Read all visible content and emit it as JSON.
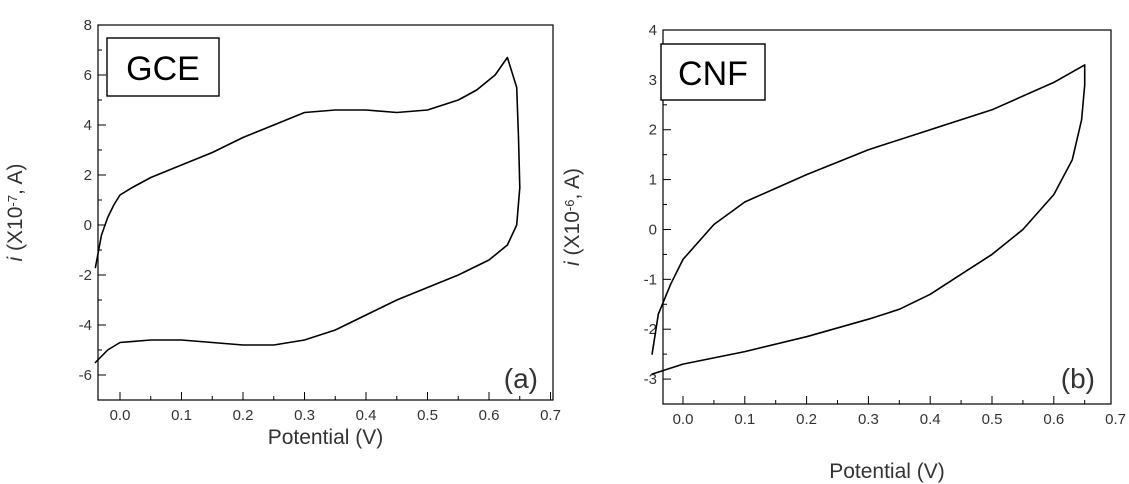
{
  "chart_data": [
    {
      "type": "line",
      "panel_tag": "(a)",
      "inset_label": "GCE",
      "xlabel": "Potential (V)",
      "ylabel": {
        "italic": "i",
        "prefix": " (X10",
        "sup": "-7",
        "suffix": ", A)"
      },
      "xlim": [
        -0.04,
        0.7
      ],
      "ylim": [
        -7,
        8
      ],
      "xticks": [
        "0.0",
        "0.1",
        "0.2",
        "0.3",
        "0.4",
        "0.5",
        "0.6",
        "0.7"
      ],
      "yticks": [
        "-6",
        "-4",
        "-2",
        "0",
        "2",
        "4",
        "6",
        "8"
      ],
      "grid": false,
      "series": [
        {
          "x": [
            -0.04,
            -0.03,
            -0.02,
            -0.01,
            0.0,
            0.02,
            0.05,
            0.1,
            0.15,
            0.2,
            0.25,
            0.3,
            0.35,
            0.4,
            0.45,
            0.5,
            0.55,
            0.58,
            0.61,
            0.63,
            0.645,
            0.648,
            0.65,
            0.645,
            0.63,
            0.6,
            0.55,
            0.5,
            0.45,
            0.4,
            0.35,
            0.3,
            0.25,
            0.2,
            0.15,
            0.1,
            0.05,
            0.0,
            -0.02,
            -0.04
          ],
          "y": [
            -1.7,
            -0.4,
            0.3,
            0.8,
            1.2,
            1.5,
            1.9,
            2.4,
            2.9,
            3.5,
            4.0,
            4.5,
            4.6,
            4.6,
            4.5,
            4.6,
            5.0,
            5.4,
            6.0,
            6.7,
            5.5,
            3.5,
            1.5,
            0.0,
            -0.8,
            -1.4,
            -2.0,
            -2.5,
            -3.0,
            -3.6,
            -4.2,
            -4.6,
            -4.8,
            -4.8,
            -4.7,
            -4.6,
            -4.6,
            -4.7,
            -5.0,
            -5.5
          ]
        }
      ]
    },
    {
      "type": "line",
      "panel_tag": "(b)",
      "inset_label": "CNF",
      "xlabel": "Potential (V)",
      "ylabel": {
        "italic": "i",
        "prefix": " (X10",
        "sup": "-6",
        "suffix": ", A)"
      },
      "xlim": [
        -0.05,
        0.7
      ],
      "ylim": [
        -3.5,
        4
      ],
      "xticks": [
        "0.0",
        "0.1",
        "0.2",
        "0.3",
        "0.4",
        "0.5",
        "0.6",
        "0.7"
      ],
      "yticks": [
        "-3",
        "-2",
        "-1",
        "0",
        "1",
        "2",
        "3",
        "4"
      ],
      "grid": false,
      "series": [
        {
          "x": [
            -0.05,
            -0.04,
            -0.02,
            0.0,
            0.05,
            0.1,
            0.2,
            0.3,
            0.4,
            0.5,
            0.6,
            0.65,
            0.65,
            0.645,
            0.63,
            0.6,
            0.55,
            0.5,
            0.45,
            0.4,
            0.35,
            0.3,
            0.2,
            0.1,
            0.0,
            -0.05
          ],
          "y": [
            -2.5,
            -1.7,
            -1.1,
            -0.6,
            0.1,
            0.55,
            1.1,
            1.6,
            2.0,
            2.4,
            2.95,
            3.3,
            2.9,
            2.2,
            1.4,
            0.7,
            0.0,
            -0.5,
            -0.9,
            -1.3,
            -1.6,
            -1.8,
            -2.15,
            -2.45,
            -2.7,
            -2.9
          ]
        }
      ]
    }
  ]
}
